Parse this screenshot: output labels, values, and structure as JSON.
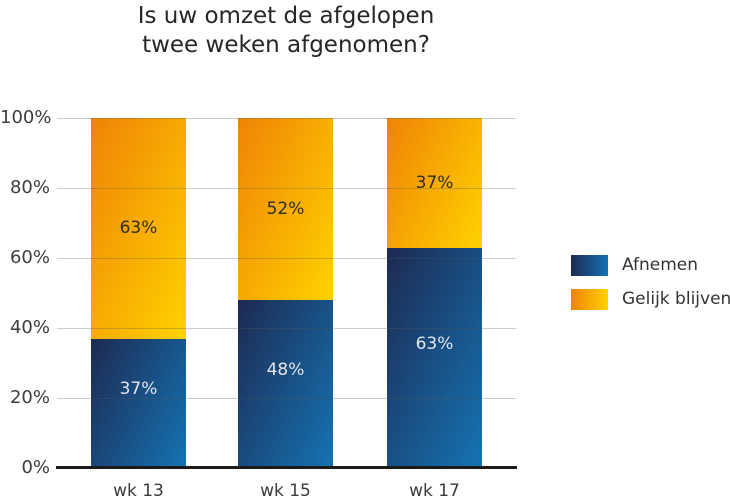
{
  "title_lines": [
    "Is uw omzet de afgelopen",
    "twee weken afgenomen?"
  ],
  "chart_data": {
    "type": "bar",
    "stacked": true,
    "percent_stacked": true,
    "title": "Is uw omzet de afgelopen twee weken afgenomen?",
    "categories": [
      "wk 13",
      "wk 15",
      "wk 17"
    ],
    "series": [
      {
        "name": "Afnemen",
        "values": [
          37,
          48,
          63
        ],
        "gradient_start": "#1d2a52",
        "gradient_end": "#1573b3",
        "label_color": "#e4e4ee"
      },
      {
        "name": "Gelijk blijven",
        "values": [
          63,
          52,
          37
        ],
        "gradient_start": "#ef8306",
        "gradient_end": "#ffd200",
        "label_color": "#2d2d2d"
      }
    ],
    "ylim": [
      0,
      100
    ],
    "yticks": [
      "100%",
      "80%",
      "60%",
      "40%",
      "20%",
      "0%"
    ],
    "grid": true,
    "legend_position": "right",
    "value_suffix": "%",
    "axis_color": "#1b1b1b",
    "gridline_color": "#b4b4b4"
  }
}
